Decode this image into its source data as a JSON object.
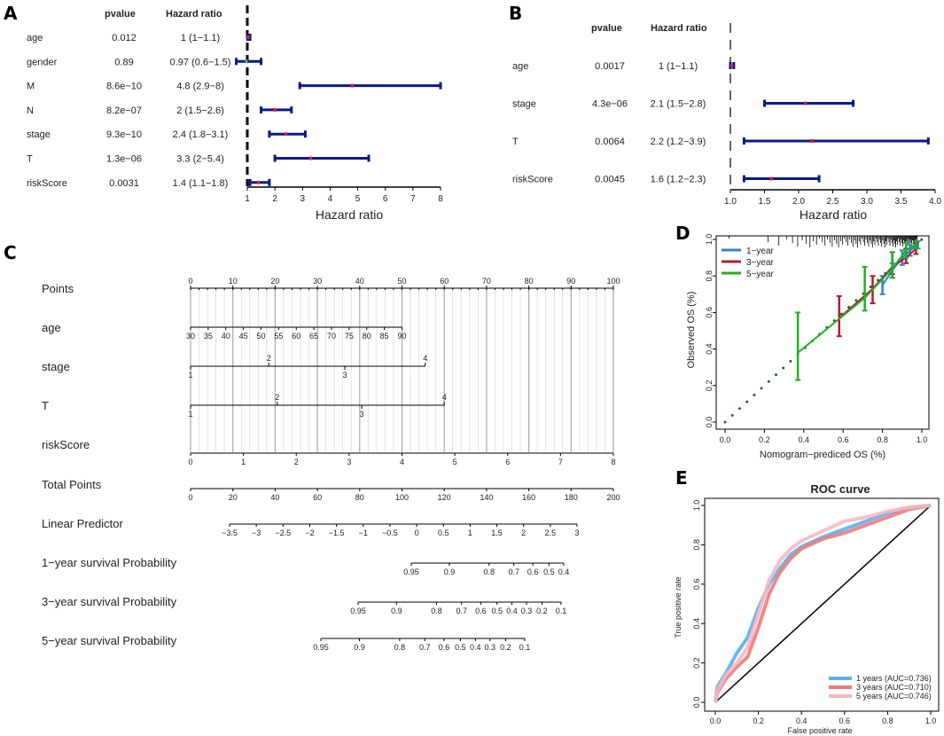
{
  "panels": {
    "A": "A",
    "B": "B",
    "C": "C",
    "D": "D",
    "E": "E"
  },
  "colors": {
    "ci_bar": "#0a1a8a",
    "point": "#e8262b",
    "grid": "#bbbbbb",
    "one_year": "#2f83d6",
    "three_year": "#b01e33",
    "five_year": "#22b022",
    "roc_1": "#5ab0f0",
    "roc_3": "#f07a7a",
    "roc_5": "#f7b8c0"
  },
  "chart_data": [
    {
      "id": "A",
      "type": "forest",
      "header_pvalue": "pvalue",
      "header_hr": "Hazard ratio",
      "xlabel": "Hazard ratio",
      "xlim": [
        1,
        8
      ],
      "xticks": [
        "1",
        "2",
        "3",
        "4",
        "5",
        "6",
        "7",
        "8"
      ],
      "rows": [
        {
          "name": "age",
          "pvalue": "0.012",
          "hr_text": "1 (1−1.1)",
          "hr": 1.03,
          "lo": 1.01,
          "hi": 1.1
        },
        {
          "name": "gender",
          "pvalue": "0.89",
          "hr_text": "0.97 (0.6−1.5)",
          "hr": 0.97,
          "lo": 0.6,
          "hi": 1.5
        },
        {
          "name": "M",
          "pvalue": "8.6e−10",
          "hr_text": "4.8 (2.9−8)",
          "hr": 4.8,
          "lo": 2.9,
          "hi": 8
        },
        {
          "name": "N",
          "pvalue": "8.2e−07",
          "hr_text": "2 (1.5−2.6)",
          "hr": 2.0,
          "lo": 1.5,
          "hi": 2.6
        },
        {
          "name": "stage",
          "pvalue": "9.3e−10",
          "hr_text": "2.4 (1.8−3.1)",
          "hr": 2.4,
          "lo": 1.8,
          "hi": 3.1
        },
        {
          "name": "T",
          "pvalue": "1.3e−06",
          "hr_text": "3.3 (2−5.4)",
          "hr": 3.3,
          "lo": 2.0,
          "hi": 5.4
        },
        {
          "name": "riskScore",
          "pvalue": "0.0031",
          "hr_text": "1.4 (1.1−1.8)",
          "hr": 1.4,
          "lo": 1.1,
          "hi": 1.8
        }
      ]
    },
    {
      "id": "B",
      "type": "forest",
      "header_pvalue": "pvalue",
      "header_hr": "Hazard ratio",
      "xlabel": "Hazard ratio",
      "xlim": [
        1.0,
        4.0
      ],
      "xticks": [
        "1.0",
        "1.5",
        "2.0",
        "2.5",
        "3.0",
        "3.5",
        "4.0"
      ],
      "rows": [
        {
          "name": "age",
          "pvalue": "0.0017",
          "hr_text": "1 (1−1.1)",
          "hr": 1.02,
          "lo": 1.0,
          "hi": 1.05
        },
        {
          "name": "stage",
          "pvalue": "4.3e−06",
          "hr_text": "2.1 (1.5−2.8)",
          "hr": 2.1,
          "lo": 1.5,
          "hi": 2.8
        },
        {
          "name": "T",
          "pvalue": "0.0064",
          "hr_text": "2.2 (1.2−3.9)",
          "hr": 2.2,
          "lo": 1.2,
          "hi": 3.9
        },
        {
          "name": "riskScore",
          "pvalue": "0.0045",
          "hr_text": "1.6 (1.2−2.3)",
          "hr": 1.6,
          "lo": 1.2,
          "hi": 2.3
        }
      ]
    },
    {
      "id": "C",
      "type": "nomogram",
      "rows": [
        {
          "name": "Points",
          "scales": [
            {
              "range": [
                0,
                100
              ],
              "labels": [
                "0",
                "10",
                "20",
                "30",
                "40",
                "50",
                "60",
                "70",
                "80",
                "90",
                "100"
              ],
              "values": [
                0,
                10,
                20,
                30,
                40,
                50,
                60,
                70,
                80,
                90,
                100
              ],
              "label_side": "above"
            }
          ]
        },
        {
          "name": "age",
          "scales": [
            {
              "range": [
                30,
                90
              ],
              "labels": [
                "30",
                "35",
                "40",
                "45",
                "50",
                "55",
                "60",
                "65",
                "70",
                "75",
                "80",
                "85",
                "90"
              ],
              "values": [
                30,
                35,
                40,
                45,
                50,
                55,
                60,
                65,
                70,
                75,
                80,
                85,
                90
              ],
              "label_side": "below"
            }
          ]
        },
        {
          "name": "stage",
          "categorical": true,
          "labels": [
            "1",
            "2",
            "3",
            "4"
          ],
          "points": [
            0,
            18.5,
            36.5,
            55.5
          ]
        },
        {
          "name": "T",
          "categorical": true,
          "labels": [
            "1",
            "2",
            "3",
            "4"
          ],
          "points": [
            0,
            20.5,
            40.5,
            60
          ]
        },
        {
          "name": "riskScore",
          "scales": [
            {
              "range": [
                0,
                8
              ],
              "labels": [
                "0",
                "1",
                "2",
                "3",
                "4",
                "5",
                "6",
                "7",
                "8"
              ],
              "values": [
                0,
                1,
                2,
                3,
                4,
                5,
                6,
                7,
                8
              ],
              "label_side": "below"
            }
          ]
        },
        {
          "name": "Total Points",
          "scales": [
            {
              "range": [
                0,
                200
              ],
              "labels": [
                "0",
                "20",
                "40",
                "60",
                "80",
                "100",
                "120",
                "140",
                "160",
                "180",
                "200"
              ],
              "values": [
                0,
                20,
                40,
                60,
                80,
                100,
                120,
                140,
                160,
                180,
                200
              ],
              "label_side": "below"
            }
          ]
        },
        {
          "name": "Linear Predictor",
          "labels": [
            "−3.5",
            "−3",
            "−2.5",
            "−2",
            "−1.5",
            "−1",
            "−0.5",
            "0",
            "0.5",
            "1",
            "1.5",
            "2",
            "2.5",
            "3"
          ],
          "values": [
            -3.5,
            -3,
            -2.5,
            -2,
            -1.5,
            -1,
            -0.5,
            0,
            0.5,
            1,
            1.5,
            2,
            2.5,
            3
          ]
        },
        {
          "name": "1−year survival Probability",
          "labels": [
            "0.95",
            "0.9",
            "0.8",
            "0.7",
            "0.6",
            "0.5",
            "0.4"
          ],
          "values": [
            0.95,
            0.9,
            0.8,
            0.7,
            0.6,
            0.5,
            0.4
          ]
        },
        {
          "name": "3−year survival Probability",
          "labels": [
            "0.95",
            "0.9",
            "0.8",
            "0.7",
            "0.6",
            "0.5",
            "0.4",
            "0.3",
            "0.2",
            "0.1"
          ],
          "values": [
            0.95,
            0.9,
            0.8,
            0.7,
            0.6,
            0.5,
            0.4,
            0.3,
            0.2,
            0.1
          ]
        },
        {
          "name": "5−year survival Probability",
          "labels": [
            "0.95",
            "0.9",
            "0.8",
            "0.7",
            "0.6",
            "0.5",
            "0.4",
            "0.3",
            "0.2",
            "0.1"
          ],
          "values": [
            0.95,
            0.9,
            0.8,
            0.7,
            0.6,
            0.5,
            0.4,
            0.3,
            0.2,
            0.1
          ]
        }
      ]
    },
    {
      "id": "D",
      "type": "calibration",
      "xlabel": "Nomogram−prediced OS (%)",
      "ylabel": "Observed OS (%)",
      "xlim": [
        0,
        1
      ],
      "ylim": [
        0,
        1
      ],
      "xticks": [
        "0.0",
        "0.2",
        "0.4",
        "0.6",
        "0.8",
        "1.0"
      ],
      "yticks": [
        "0.0",
        "0.2",
        "0.4",
        "0.6",
        "0.8",
        "1.0"
      ],
      "legend": [
        "1−year",
        "3−year",
        "5−year"
      ],
      "series": [
        {
          "name": "1−year",
          "x": [
            0.8,
            0.85,
            0.9,
            0.94,
            0.98
          ],
          "y": [
            0.75,
            0.83,
            0.9,
            0.94,
            0.97
          ],
          "lo": [
            0.7,
            0.79,
            0.86,
            0.91,
            0.95
          ],
          "hi": [
            0.8,
            0.87,
            0.94,
            0.97,
            0.99
          ]
        },
        {
          "name": "3−year",
          "x": [
            0.58,
            0.75,
            0.85,
            0.92,
            0.97
          ],
          "y": [
            0.57,
            0.73,
            0.85,
            0.9,
            0.95
          ],
          "lo": [
            0.47,
            0.65,
            0.81,
            0.87,
            0.92
          ],
          "hi": [
            0.69,
            0.8,
            0.93,
            0.95,
            0.98
          ]
        },
        {
          "name": "5−year",
          "x": [
            0.37,
            0.71,
            0.85,
            0.92,
            0.97
          ],
          "y": [
            0.38,
            0.68,
            0.84,
            0.94,
            0.97
          ],
          "lo": [
            0.23,
            0.61,
            0.79,
            0.9,
            0.95
          ],
          "hi": [
            0.6,
            0.85,
            0.93,
            0.98,
            0.99
          ]
        }
      ]
    },
    {
      "id": "E",
      "type": "line",
      "title": "ROC curve",
      "xlabel": "False positive rate",
      "ylabel": "True positive rate",
      "xlim": [
        0,
        1
      ],
      "ylim": [
        0,
        1
      ],
      "xticks": [
        "0.0",
        "0.2",
        "0.4",
        "0.6",
        "0.8",
        "1.0"
      ],
      "yticks": [
        "0.0",
        "0.2",
        "0.4",
        "0.6",
        "0.8",
        "1.0"
      ],
      "legend": [
        "1 years (AUC=0.736)",
        "3 years (AUC=0.710)",
        "5 years (AUC=0.746)"
      ],
      "series": [
        {
          "name": "1 years (AUC=0.736)",
          "x": [
            0,
            0.01,
            0.05,
            0.1,
            0.15,
            0.2,
            0.25,
            0.3,
            0.35,
            0.4,
            0.5,
            0.6,
            0.7,
            0.8,
            0.9,
            1.0
          ],
          "y": [
            0,
            0.08,
            0.15,
            0.25,
            0.33,
            0.48,
            0.6,
            0.68,
            0.75,
            0.79,
            0.84,
            0.88,
            0.92,
            0.96,
            0.99,
            1.0
          ]
        },
        {
          "name": "3 years (AUC=0.710)",
          "x": [
            0,
            0.01,
            0.05,
            0.1,
            0.15,
            0.2,
            0.25,
            0.3,
            0.35,
            0.4,
            0.5,
            0.6,
            0.7,
            0.8,
            0.9,
            1.0
          ],
          "y": [
            0,
            0.05,
            0.12,
            0.18,
            0.23,
            0.38,
            0.55,
            0.66,
            0.73,
            0.78,
            0.83,
            0.86,
            0.9,
            0.94,
            0.98,
            1.0
          ]
        },
        {
          "name": "5 years (AUC=0.746)",
          "x": [
            0,
            0.01,
            0.05,
            0.1,
            0.15,
            0.2,
            0.25,
            0.3,
            0.35,
            0.4,
            0.5,
            0.6,
            0.7,
            0.8,
            0.9,
            1.0
          ],
          "y": [
            0,
            0.06,
            0.14,
            0.2,
            0.28,
            0.45,
            0.62,
            0.72,
            0.78,
            0.82,
            0.87,
            0.92,
            0.94,
            0.97,
            0.99,
            1.0
          ]
        }
      ]
    }
  ]
}
